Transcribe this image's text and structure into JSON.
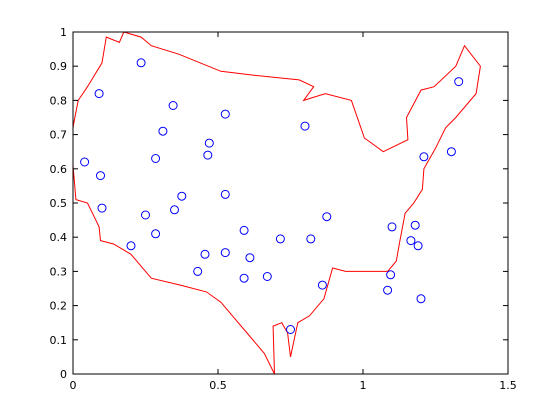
{
  "chart_data": {
    "type": "scatter",
    "title": "",
    "xlabel": "",
    "ylabel": "",
    "xlim": [
      0,
      1.5
    ],
    "ylim": [
      0,
      1
    ],
    "grid": false,
    "x_ticks": [
      "0",
      "0.5",
      "1",
      "1.5"
    ],
    "y_ticks": [
      "0",
      "0.1",
      "0.2",
      "0.3",
      "0.4",
      "0.5",
      "0.6",
      "0.7",
      "0.8",
      "0.9",
      "1"
    ],
    "x_tick_values": [
      0,
      0.5,
      1,
      1.5
    ],
    "y_tick_values": [
      0,
      0.1,
      0.2,
      0.3,
      0.4,
      0.5,
      0.6,
      0.7,
      0.8,
      0.9,
      1
    ],
    "colors": {
      "outline": "#ff0000",
      "points": "#0000ff",
      "axes": "#000000"
    },
    "outline": {
      "x": [
        0.0,
        0.004,
        0.018,
        0.05,
        0.1,
        0.115,
        0.16,
        0.175,
        0.235,
        0.27,
        0.365,
        0.51,
        0.61,
        0.78,
        0.83,
        0.795,
        0.87,
        0.96,
        1.005,
        1.07,
        1.155,
        1.15,
        1.2,
        1.245,
        1.32,
        1.35,
        1.405,
        1.39,
        1.32,
        1.285,
        1.25,
        1.21,
        1.205,
        1.175,
        1.145,
        1.125,
        1.115,
        1.085,
        1.03,
        0.94,
        0.895,
        0.865,
        0.815,
        0.775,
        0.75,
        0.74,
        0.72,
        0.69,
        0.695,
        0.66,
        0.6,
        0.55,
        0.51,
        0.46,
        0.37,
        0.27,
        0.23,
        0.2,
        0.14,
        0.095,
        0.09,
        0.05,
        0.01,
        0.0
      ],
      "y": [
        0.72,
        0.74,
        0.8,
        0.84,
        0.91,
        0.985,
        0.97,
        1.0,
        0.985,
        0.96,
        0.935,
        0.885,
        0.875,
        0.86,
        0.84,
        0.8,
        0.82,
        0.8,
        0.69,
        0.65,
        0.685,
        0.75,
        0.83,
        0.84,
        0.9,
        0.96,
        0.9,
        0.82,
        0.75,
        0.72,
        0.66,
        0.6,
        0.54,
        0.5,
        0.47,
        0.38,
        0.33,
        0.3,
        0.3,
        0.3,
        0.31,
        0.22,
        0.17,
        0.15,
        0.05,
        0.12,
        0.15,
        0.14,
        0.0,
        0.06,
        0.12,
        0.17,
        0.21,
        0.24,
        0.26,
        0.28,
        0.32,
        0.35,
        0.38,
        0.39,
        0.43,
        0.5,
        0.51,
        0.61
      ],
      "close": true
    },
    "points": {
      "x": [
        0.235,
        0.09,
        0.345,
        0.31,
        0.525,
        0.47,
        0.465,
        0.285,
        0.04,
        0.095,
        0.375,
        0.35,
        0.525,
        0.1,
        0.8,
        0.875,
        0.59,
        0.715,
        0.82,
        1.21,
        1.305,
        1.33,
        1.1,
        1.18,
        1.165,
        1.19,
        0.25,
        0.285,
        0.2,
        0.525,
        0.455,
        0.61,
        0.43,
        0.59,
        0.67,
        1.095,
        1.085,
        0.86,
        1.2,
        0.75
      ],
      "y": [
        0.91,
        0.82,
        0.785,
        0.71,
        0.76,
        0.675,
        0.64,
        0.63,
        0.62,
        0.58,
        0.52,
        0.48,
        0.525,
        0.485,
        0.725,
        0.46,
        0.42,
        0.395,
        0.395,
        0.635,
        0.65,
        0.855,
        0.43,
        0.435,
        0.39,
        0.375,
        0.465,
        0.41,
        0.375,
        0.355,
        0.35,
        0.34,
        0.3,
        0.28,
        0.285,
        0.29,
        0.245,
        0.26,
        0.22,
        0.13
      ],
      "marker": "circle-open"
    }
  }
}
